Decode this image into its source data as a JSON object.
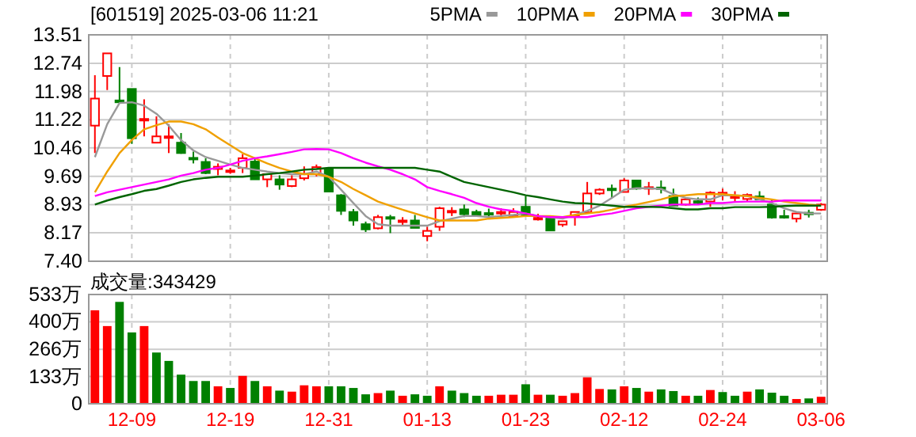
{
  "chart_data": [
    {
      "type": "candlestick",
      "title": "[601519] 2025-03-06 11:21",
      "categories": [
        null,
        null,
        null,
        null,
        null,
        null,
        null,
        null,
        null,
        null,
        null,
        null,
        null,
        null,
        null,
        null,
        null,
        null,
        null,
        null,
        null,
        null,
        null,
        null,
        null,
        null,
        null,
        null,
        null,
        null,
        null,
        null,
        null,
        null,
        null,
        null,
        null,
        null,
        null,
        null,
        null,
        null,
        null,
        null,
        null,
        null,
        null,
        null,
        null,
        null,
        null,
        null,
        null,
        null,
        null,
        null,
        null,
        null,
        null,
        null
      ],
      "ohlc": [
        [
          11.06,
          12.42,
          10.32,
          11.79
        ],
        [
          12.4,
          13.01,
          12.02,
          13.01
        ],
        [
          11.74,
          12.64,
          11.69,
          11.69
        ],
        [
          12.05,
          12.05,
          10.57,
          10.72
        ],
        [
          11.2,
          11.77,
          10.77,
          11.24
        ],
        [
          10.6,
          11.31,
          10.6,
          10.77
        ],
        [
          10.74,
          11.1,
          10.32,
          10.77
        ],
        [
          10.6,
          10.86,
          10.3,
          10.32
        ],
        [
          10.19,
          10.36,
          10.04,
          10.15
        ],
        [
          10.08,
          10.18,
          9.75,
          9.78
        ],
        [
          9.89,
          10.04,
          9.72,
          9.95
        ],
        [
          9.82,
          9.92,
          9.76,
          9.85
        ],
        [
          9.92,
          10.29,
          9.78,
          10.18
        ],
        [
          10.09,
          10.2,
          9.61,
          9.61
        ],
        [
          9.61,
          9.75,
          9.4,
          9.75
        ],
        [
          9.61,
          9.72,
          9.33,
          9.47
        ],
        [
          9.43,
          9.72,
          9.4,
          9.61
        ],
        [
          9.64,
          9.96,
          9.58,
          9.75
        ],
        [
          9.75,
          10.01,
          9.69,
          9.94
        ],
        [
          9.89,
          9.92,
          9.28,
          9.28
        ],
        [
          9.18,
          9.21,
          8.65,
          8.76
        ],
        [
          8.73,
          8.81,
          8.36,
          8.5
        ],
        [
          8.4,
          8.47,
          8.19,
          8.26
        ],
        [
          8.29,
          8.65,
          8.26,
          8.59
        ],
        [
          8.59,
          8.65,
          8.16,
          8.56
        ],
        [
          8.48,
          8.59,
          8.36,
          8.5
        ],
        [
          8.5,
          8.65,
          8.3,
          8.3
        ],
        [
          8.08,
          8.33,
          7.94,
          8.22
        ],
        [
          8.33,
          8.87,
          8.22,
          8.83
        ],
        [
          8.72,
          8.86,
          8.62,
          8.76
        ],
        [
          8.8,
          8.93,
          8.59,
          8.67
        ],
        [
          8.73,
          8.79,
          8.62,
          8.62
        ],
        [
          8.7,
          8.82,
          8.59,
          8.67
        ],
        [
          8.7,
          8.83,
          8.59,
          8.73
        ],
        [
          8.62,
          8.83,
          8.59,
          8.73
        ],
        [
          8.87,
          9.16,
          8.65,
          8.65
        ],
        [
          8.55,
          8.68,
          8.5,
          8.57
        ],
        [
          8.55,
          8.62,
          8.23,
          8.23
        ],
        [
          8.39,
          8.48,
          8.33,
          8.48
        ],
        [
          8.62,
          8.73,
          8.36,
          8.73
        ],
        [
          8.72,
          9.54,
          8.72,
          9.23
        ],
        [
          9.23,
          9.37,
          9.19,
          9.33
        ],
        [
          9.36,
          9.47,
          9.1,
          9.33
        ],
        [
          9.27,
          9.64,
          9.27,
          9.58
        ],
        [
          9.58,
          9.58,
          9.33,
          9.36
        ],
        [
          9.39,
          9.54,
          9.19,
          9.4
        ],
        [
          9.39,
          9.58,
          9.23,
          9.37
        ],
        [
          9.16,
          9.36,
          8.9,
          8.9
        ],
        [
          8.93,
          9.12,
          8.9,
          9.07
        ],
        [
          9.02,
          9.12,
          8.93,
          9.01
        ],
        [
          9.01,
          9.29,
          8.87,
          9.25
        ],
        [
          9.23,
          9.36,
          9.05,
          9.25
        ],
        [
          9.13,
          9.29,
          9.01,
          9.15
        ],
        [
          9.08,
          9.23,
          9.01,
          9.19
        ],
        [
          9.15,
          9.29,
          9.07,
          9.07
        ],
        [
          8.93,
          9.07,
          8.55,
          8.58
        ],
        [
          8.62,
          8.79,
          8.55,
          8.6
        ],
        [
          8.55,
          8.72,
          8.45,
          8.69
        ],
        [
          8.71,
          8.79,
          8.58,
          8.69
        ],
        [
          8.79,
          8.97,
          8.76,
          8.93
        ]
      ],
      "series": [
        {
          "name": "5PMA",
          "type": "line",
          "color": "#999999",
          "values": [
            10.21,
            11.1,
            11.67,
            11.69,
            11.6,
            11.38,
            11.06,
            10.67,
            10.39,
            10.21,
            10.11,
            10.01,
            9.92,
            9.87,
            9.82,
            9.78,
            9.75,
            9.75,
            9.82,
            9.68,
            9.33,
            8.97,
            8.62,
            8.4,
            8.36,
            8.36,
            8.36,
            8.36,
            8.48,
            8.55,
            8.62,
            8.62,
            8.59,
            8.62,
            8.65,
            8.69,
            8.62,
            8.59,
            8.55,
            8.65,
            8.76,
            8.9,
            9.11,
            9.33,
            9.37,
            9.37,
            9.35,
            9.21,
            9.11,
            9.07,
            9.07,
            9.18,
            9.18,
            9.16,
            9.07,
            8.97,
            8.83,
            8.73,
            8.69,
            8.69
          ]
        },
        {
          "name": "10PMA",
          "type": "line",
          "color": "#f0a000",
          "values": [
            9.26,
            9.82,
            10.32,
            10.67,
            10.96,
            11.07,
            11.17,
            11.17,
            11.1,
            10.96,
            10.74,
            10.53,
            10.32,
            10.18,
            10.04,
            9.92,
            9.82,
            9.75,
            9.75,
            9.68,
            9.54,
            9.35,
            9.18,
            9.01,
            8.9,
            8.79,
            8.69,
            8.59,
            8.5,
            8.5,
            8.5,
            8.5,
            8.55,
            8.57,
            8.59,
            8.62,
            8.62,
            8.62,
            8.59,
            8.65,
            8.69,
            8.73,
            8.79,
            8.87,
            8.93,
            9.0,
            9.07,
            9.16,
            9.18,
            9.21,
            9.21,
            9.21,
            9.18,
            9.16,
            9.11,
            9.07,
            9.01,
            8.97,
            8.93,
            8.9
          ]
        },
        {
          "name": "20PMA",
          "type": "line",
          "color": "#ff00ff",
          "values": [
            9.16,
            9.26,
            9.33,
            9.4,
            9.47,
            9.54,
            9.61,
            9.71,
            9.78,
            9.87,
            9.92,
            10.01,
            10.11,
            10.18,
            10.23,
            10.29,
            10.35,
            10.42,
            10.43,
            10.42,
            10.32,
            10.18,
            10.06,
            9.96,
            9.87,
            9.75,
            9.61,
            9.4,
            9.3,
            9.21,
            9.11,
            8.97,
            8.87,
            8.8,
            8.76,
            8.69,
            8.62,
            8.59,
            8.59,
            8.59,
            8.59,
            8.65,
            8.69,
            8.76,
            8.83,
            8.87,
            8.9,
            8.93,
            8.93,
            8.93,
            8.97,
            8.97,
            9.0,
            9.01,
            9.01,
            9.01,
            9.04,
            9.04,
            9.04,
            9.04
          ]
        },
        {
          "name": "30PMA",
          "type": "line",
          "color": "#006400",
          "values": [
            8.93,
            9.04,
            9.13,
            9.21,
            9.3,
            9.35,
            9.44,
            9.54,
            9.61,
            9.65,
            9.68,
            9.68,
            9.68,
            9.71,
            9.75,
            9.78,
            9.82,
            9.87,
            9.89,
            9.92,
            9.92,
            9.92,
            9.92,
            9.92,
            9.92,
            9.92,
            9.92,
            9.87,
            9.82,
            9.68,
            9.54,
            9.47,
            9.4,
            9.33,
            9.26,
            9.18,
            9.13,
            9.07,
            9.01,
            8.97,
            8.96,
            8.93,
            8.9,
            8.87,
            8.87,
            8.87,
            8.86,
            8.83,
            8.8,
            8.8,
            8.83,
            8.83,
            8.86,
            8.86,
            8.86,
            8.87,
            8.89,
            8.9,
            8.9,
            8.9
          ]
        }
      ],
      "ylim": [
        7.4,
        13.51
      ],
      "yticks": [
        {
          "value": 7.4,
          "label": "7.40"
        },
        8.17,
        8.93,
        9.69,
        10.46,
        11.22,
        11.98,
        12.74,
        13.51
      ],
      "grid": true,
      "legend": "top right",
      "tick_labels": "y"
    },
    {
      "type": "bar",
      "title": "成交量:343429",
      "categories": [
        null,
        null,
        null,
        "12-09",
        null,
        null,
        null,
        null,
        null,
        null,
        null,
        "12-19",
        null,
        null,
        null,
        null,
        null,
        null,
        null,
        "12-31",
        null,
        null,
        null,
        null,
        null,
        null,
        null,
        "01-13",
        null,
        null,
        null,
        null,
        null,
        null,
        null,
        "01-23",
        null,
        null,
        null,
        null,
        null,
        null,
        null,
        "02-12",
        null,
        null,
        null,
        null,
        null,
        null,
        null,
        "02-24",
        null,
        null,
        null,
        null,
        null,
        null,
        null,
        "03-06"
      ],
      "values": [
        456,
        379,
        497,
        348,
        379,
        250,
        209,
        142,
        111,
        111,
        85,
        77,
        136,
        111,
        85,
        64,
        59,
        90,
        85,
        85,
        85,
        77,
        46,
        52,
        64,
        39,
        46,
        39,
        85,
        64,
        52,
        39,
        39,
        44,
        44,
        95,
        44,
        44,
        39,
        52,
        129,
        72,
        70,
        85,
        77,
        59,
        70,
        62,
        39,
        39,
        67,
        57,
        39,
        59,
        70,
        54,
        39,
        23,
        26,
        34
      ],
      "colors": [
        "#ff0000",
        "#ff0000",
        "#008000",
        "#008000",
        "#ff0000",
        "#008000",
        "#008000",
        "#008000",
        "#008000",
        "#008000",
        "#ff0000",
        "#008000",
        "#ff0000",
        "#008000",
        "#ff0000",
        "#008000",
        "#ff0000",
        "#ff0000",
        "#ff0000",
        "#008000",
        "#008000",
        "#008000",
        "#008000",
        "#ff0000",
        "#008000",
        "#ff0000",
        "#008000",
        "#008000",
        "#ff0000",
        "#008000",
        "#008000",
        "#008000",
        "#ff0000",
        "#ff0000",
        "#ff0000",
        "#008000",
        "#ff0000",
        "#008000",
        "#ff0000",
        "#ff0000",
        "#ff0000",
        "#ff0000",
        "#008000",
        "#ff0000",
        "#008000",
        "#ff0000",
        "#008000",
        "#008000",
        "#ff0000",
        "#008000",
        "#ff0000",
        "#008000",
        "#008000",
        "#ff0000",
        "#008000",
        "#008000",
        "#008000",
        "#ff0000",
        "#008000",
        "#ff0000"
      ],
      "ylim": [
        0,
        533
      ],
      "yticks": [
        0,
        {
          "value": 133,
          "label": "133万"
        },
        {
          "value": 266,
          "label": "266万"
        },
        {
          "value": 400,
          "label": "400万"
        },
        {
          "value": 533,
          "label": "533万"
        }
      ],
      "grid": true
    }
  ]
}
